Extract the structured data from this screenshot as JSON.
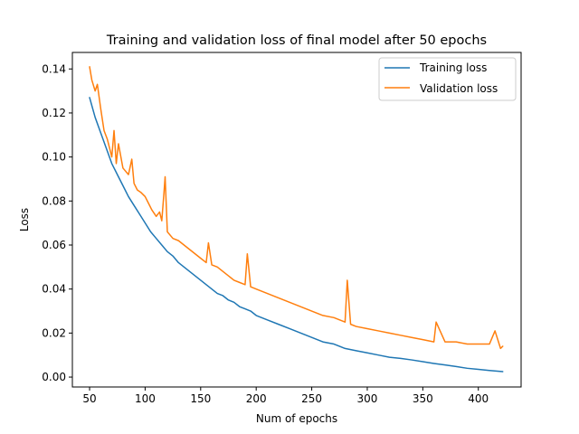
{
  "chart_data": {
    "type": "line",
    "title": "Training and validation loss of final model after 50 epochs",
    "xlabel": "Num of epochs",
    "ylabel": "Loss",
    "xlim": [
      34.5,
      438.5
    ],
    "ylim": [
      -0.0045,
      0.1475
    ],
    "xticks": [
      50,
      100,
      150,
      200,
      250,
      300,
      350,
      400
    ],
    "yticks": [
      0.0,
      0.02,
      0.04,
      0.06,
      0.08,
      0.1,
      0.12,
      0.14
    ],
    "ytick_labels": [
      "0.00",
      "0.02",
      "0.04",
      "0.06",
      "0.08",
      "0.10",
      "0.12",
      "0.14"
    ],
    "grid": false,
    "legend_position": "top-right",
    "series": [
      {
        "name": "Training loss",
        "color": "#1f77b4",
        "x": [
          50,
          55,
          60,
          65,
          70,
          75,
          80,
          85,
          90,
          95,
          100,
          105,
          110,
          115,
          120,
          125,
          130,
          135,
          140,
          145,
          150,
          155,
          160,
          165,
          170,
          175,
          180,
          185,
          190,
          195,
          200,
          210,
          220,
          230,
          240,
          250,
          260,
          270,
          280,
          290,
          300,
          310,
          320,
          330,
          340,
          350,
          360,
          370,
          380,
          390,
          400,
          410,
          422
        ],
        "values": [
          0.127,
          0.118,
          0.111,
          0.104,
          0.097,
          0.092,
          0.087,
          0.082,
          0.078,
          0.074,
          0.07,
          0.066,
          0.063,
          0.06,
          0.057,
          0.055,
          0.052,
          0.05,
          0.048,
          0.046,
          0.044,
          0.042,
          0.04,
          0.038,
          0.037,
          0.035,
          0.034,
          0.032,
          0.031,
          0.03,
          0.028,
          0.026,
          0.024,
          0.022,
          0.02,
          0.018,
          0.016,
          0.015,
          0.013,
          0.012,
          0.011,
          0.01,
          0.009,
          0.0085,
          0.0078,
          0.007,
          0.0062,
          0.0055,
          0.0048,
          0.004,
          0.0035,
          0.003,
          0.0025
        ]
      },
      {
        "name": "Validation loss",
        "color": "#ff7f0e",
        "x": [
          50,
          52,
          55,
          57,
          60,
          63,
          66,
          70,
          72,
          74,
          76,
          80,
          85,
          88,
          90,
          93,
          96,
          100,
          103,
          106,
          110,
          113,
          115,
          117,
          118,
          120,
          125,
          130,
          135,
          140,
          145,
          150,
          155,
          157,
          160,
          165,
          170,
          175,
          180,
          185,
          190,
          192,
          195,
          200,
          210,
          220,
          230,
          240,
          250,
          260,
          270,
          280,
          282,
          285,
          290,
          300,
          310,
          320,
          330,
          340,
          350,
          360,
          362,
          370,
          380,
          390,
          400,
          410,
          415,
          420,
          422
        ],
        "values": [
          0.141,
          0.135,
          0.13,
          0.133,
          0.122,
          0.112,
          0.108,
          0.1,
          0.112,
          0.097,
          0.106,
          0.095,
          0.092,
          0.099,
          0.088,
          0.085,
          0.084,
          0.082,
          0.079,
          0.076,
          0.073,
          0.075,
          0.071,
          0.084,
          0.091,
          0.066,
          0.063,
          0.062,
          0.06,
          0.058,
          0.056,
          0.054,
          0.052,
          0.061,
          0.051,
          0.05,
          0.048,
          0.046,
          0.044,
          0.043,
          0.042,
          0.056,
          0.041,
          0.04,
          0.038,
          0.036,
          0.034,
          0.032,
          0.03,
          0.028,
          0.027,
          0.025,
          0.044,
          0.024,
          0.023,
          0.022,
          0.021,
          0.02,
          0.019,
          0.018,
          0.017,
          0.016,
          0.025,
          0.016,
          0.016,
          0.015,
          0.015,
          0.015,
          0.021,
          0.013,
          0.014
        ]
      }
    ]
  }
}
